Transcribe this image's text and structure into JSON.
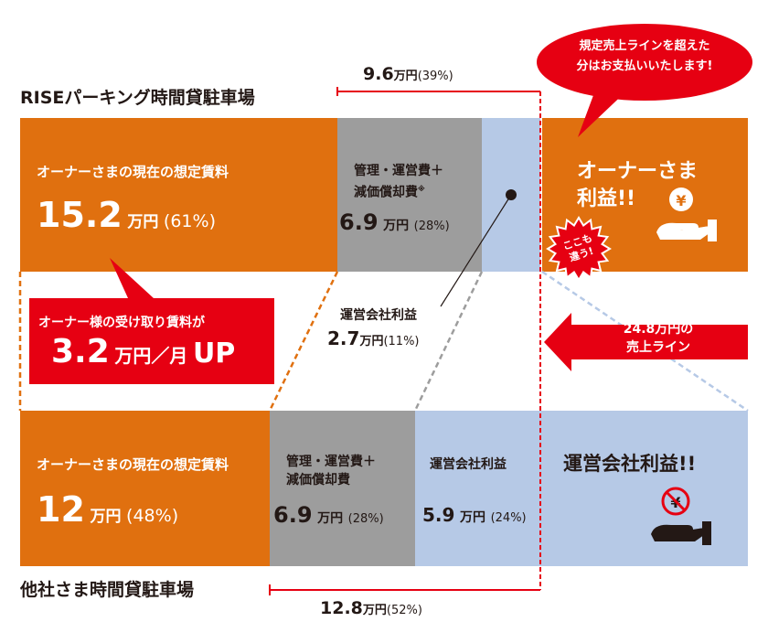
{
  "colors": {
    "orange": "#e0700f",
    "gray": "#9d9d9d",
    "light_blue": "#b6c9e6",
    "red": "#e60012",
    "text": "#231815"
  },
  "top": {
    "title": "RISEパーキング時間貸駐車場",
    "range_value": "9.6",
    "range_unit": "万円",
    "range_pct": "(39%)",
    "owner_label": "オーナーさまの現在の想定賃料",
    "owner_value": "15.2",
    "owner_unit": "万円",
    "owner_pct": "(61%)",
    "cost_line1": "管理・運営費＋",
    "cost_line2": "減価償却費",
    "cost_mark": "※",
    "cost_value": "6.9",
    "cost_unit": "万円",
    "cost_pct": "(28%)",
    "profit_title_line1": "オーナーさま",
    "profit_title_line2": "利益!!",
    "profit_icon": "yen-hand-icon"
  },
  "middle": {
    "uplift_label": "オーナー様の受け取り賃料が",
    "uplift_value": "3.2",
    "uplift_unit": "万円／月",
    "uplift_suffix": "UP",
    "op_profit_label": "運営会社利益",
    "op_profit_value": "2.7",
    "op_profit_unit": "万円",
    "op_profit_pct": "(11%)",
    "sales_line1": "24.8万円の",
    "sales_line2": "売上ライン",
    "badge_line1": "ここも",
    "badge_line2": "違う!",
    "bubble_line1": "規定売上ラインを超えた",
    "bubble_line2": "分はお支払いいたします!"
  },
  "bottom": {
    "title": "他社さま時間貸駐車場",
    "owner_label": "オーナーさまの現在の想定賃料",
    "owner_value": "12",
    "owner_unit": "万円",
    "owner_pct": "(48%)",
    "cost_line1": "管理・運営費＋",
    "cost_line2": "減価償却費",
    "cost_value": "6.9",
    "cost_unit": "万円",
    "cost_pct": "(28%)",
    "op_label": "運営会社利益",
    "op_value": "5.9",
    "op_unit": "万円",
    "op_pct": "(24%)",
    "profit_title": "運営会社利益!!",
    "profit_icon": "no-yen-hand-icon",
    "range_value": "12.8",
    "range_unit": "万円",
    "range_pct": "(52%)"
  }
}
